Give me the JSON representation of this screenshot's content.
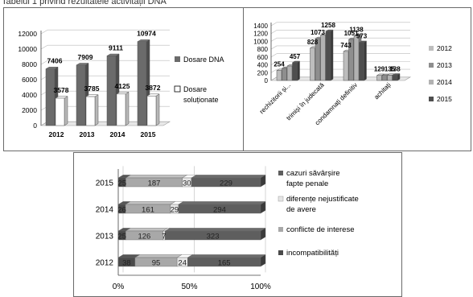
{
  "header_text": "Tabelul 1 privind rezultatele activității DNA",
  "chart_data": [
    {
      "type": "bar",
      "style": "3d-column",
      "categories": [
        "2012",
        "2013",
        "2014",
        "2015"
      ],
      "ylim": [
        0,
        12000
      ],
      "yticks": [
        "0",
        "2000",
        "4000",
        "6000",
        "8000",
        "10000",
        "12000"
      ],
      "grid": true,
      "legend_position": "right",
      "series": [
        {
          "name": "Dosare DNA",
          "values": [
            7406,
            7909,
            9111,
            10974
          ],
          "labels": [
            "7406",
            "7909",
            "9111",
            "10974"
          ],
          "color": "#6b6b6b"
        },
        {
          "name": "Dosare soluționate",
          "values": [
            3578,
            3785,
            4125,
            3872
          ],
          "labels": [
            "3578",
            "3785",
            "4125",
            "3872"
          ],
          "color": "#ffffff"
        }
      ]
    },
    {
      "type": "bar",
      "style": "3d-column",
      "categories": [
        "rechizitorii și...",
        "trimiși în judecată",
        "condamnați definitiv",
        "achitați"
      ],
      "ylim": [
        0,
        1400
      ],
      "yticks": [
        "0",
        "200",
        "400",
        "600",
        "800",
        "1000",
        "1200",
        "1400"
      ],
      "grid": true,
      "legend_position": "right",
      "series": [
        {
          "name": "2012",
          "values": [
            254,
            828,
            743,
            129
          ],
          "labels": [
            "254",
            "828",
            "743",
            "129"
          ],
          "color": "#bdbdbd"
        },
        {
          "name": "2013",
          "values": [
            310,
            1073,
            1051,
            128
          ],
          "labels": [
            "",
            "1073",
            "1051",
            ""
          ],
          "color": "#8e8e8e"
        },
        {
          "name": "2014",
          "values": [
            370,
            1160,
            1138,
            135
          ],
          "labels": [
            "",
            "",
            "1138",
            "135"
          ],
          "color": "#b2b2b2"
        },
        {
          "name": "2015",
          "values": [
            457,
            1258,
            973,
            138
          ],
          "labels": [
            "457",
            "1258",
            "973",
            "138"
          ],
          "color": "#4e4e4e"
        }
      ]
    },
    {
      "type": "bar",
      "style": "3d-100pct-stacked-horizontal",
      "categories": [
        "2015",
        "2014",
        "2013",
        "2012"
      ],
      "xticks": [
        "0%",
        "50%",
        "100%"
      ],
      "grid": true,
      "legend_position": "right",
      "series": [
        {
          "name": "incompatibilități",
          "values": [
            25,
            26,
            25,
            38
          ],
          "labels": [
            "25",
            "26",
            "25",
            "38"
          ],
          "color": "#4a4a4a"
        },
        {
          "name": "conflicte de interese",
          "values": [
            187,
            161,
            126,
            95
          ],
          "labels": [
            "187",
            "161",
            "126",
            "95"
          ],
          "color": "#a8a8a8"
        },
        {
          "name": "diferențe nejustificate de avere",
          "values": [
            30,
            29,
            7,
            24
          ],
          "labels": [
            "30",
            "29",
            "7",
            "24"
          ],
          "color": "#e6e6e6"
        },
        {
          "name": "cazuri săvârșire fapte penale",
          "values": [
            229,
            294,
            323,
            165
          ],
          "labels": [
            "229",
            "294",
            "323",
            "165"
          ],
          "color": "#5e5e5e"
        }
      ]
    }
  ]
}
